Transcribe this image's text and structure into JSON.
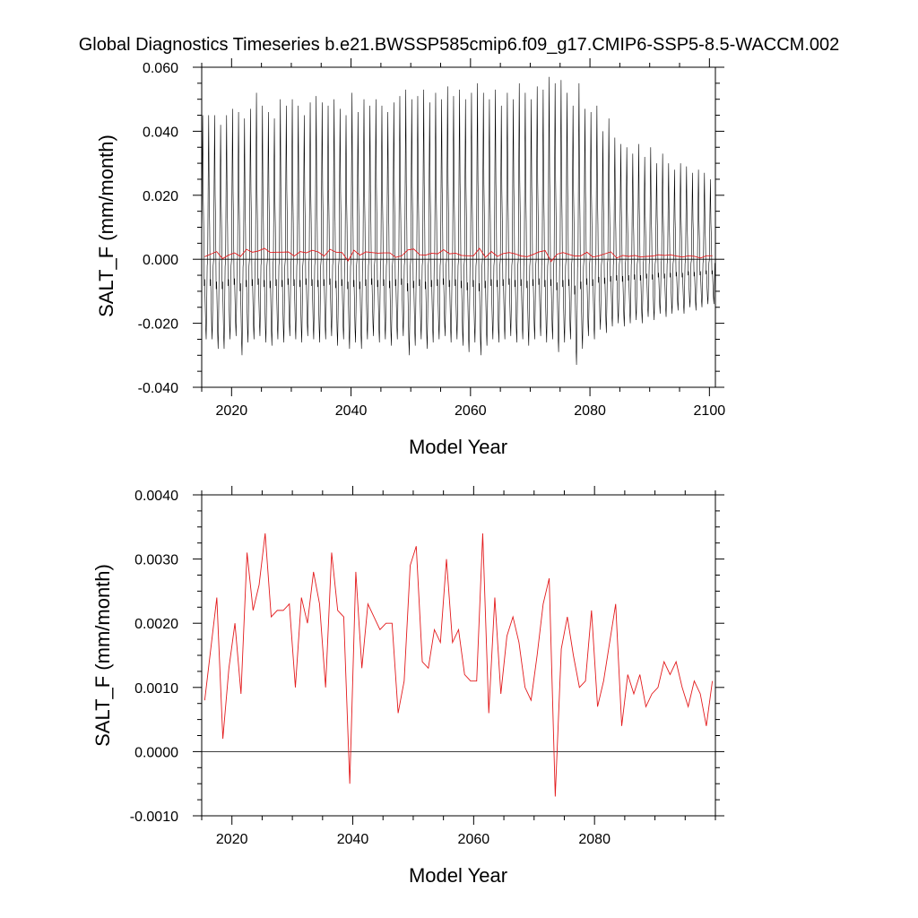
{
  "figure": {
    "title": "Global Diagnostics Timeseries b.e21.BWSSP585cmip6.f09_g17.CMIP6-SSP5-8.5-WACCM.002"
  },
  "colors": {
    "monthly_line": "#000000",
    "annual_line": "#e31a1c",
    "zero_line": "#000000",
    "frame": "#000000"
  },
  "chart_data": [
    {
      "type": "line",
      "title": "",
      "xlabel": "Model Year",
      "ylabel": "SALT_F (mm/month)",
      "xlim": [
        2015,
        2101
      ],
      "ylim": [
        -0.04,
        0.06
      ],
      "xticks": [
        2020,
        2040,
        2060,
        2080,
        2100
      ],
      "xtick_labels": [
        "2020",
        "2040",
        "2060",
        "2080",
        "2100"
      ],
      "yticks": [
        -0.04,
        -0.02,
        0.0,
        0.02,
        0.04,
        0.06
      ],
      "ytick_labels": [
        "-0.040",
        "-0.020",
        "0.000",
        "0.020",
        "0.040",
        "0.060"
      ],
      "reference_line": 0,
      "grid": false,
      "series": [
        {
          "kind": "monthly",
          "start_year": 2015,
          "month_cycle": [
            0.0,
            0.012,
            0.022,
            0.02,
            0.005,
            -0.008,
            -0.006,
            -0.012,
            -0.02,
            -0.024,
            -0.015,
            -0.002
          ],
          "annual_peak": [
            0.045,
            0.045,
            0.045,
            0.042,
            0.045,
            0.047,
            0.046,
            0.044,
            0.047,
            0.052,
            0.048,
            0.046,
            0.044,
            0.05,
            0.048,
            0.05,
            0.048,
            0.045,
            0.049,
            0.051,
            0.049,
            0.048,
            0.05,
            0.047,
            0.045,
            0.052,
            0.046,
            0.05,
            0.048,
            0.05,
            0.048,
            0.046,
            0.049,
            0.051,
            0.053,
            0.05,
            0.051,
            0.053,
            0.049,
            0.052,
            0.05,
            0.054,
            0.051,
            0.053,
            0.05,
            0.052,
            0.055,
            0.052,
            0.05,
            0.053,
            0.048,
            0.052,
            0.05,
            0.055,
            0.052,
            0.05,
            0.054,
            0.053,
            0.057,
            0.055,
            0.056,
            0.052,
            0.048,
            0.055,
            0.047,
            0.046,
            0.048,
            0.04,
            0.044,
            0.038,
            0.036,
            0.035,
            0.033,
            0.036,
            0.032,
            0.035,
            0.03,
            0.033,
            0.03,
            0.028,
            0.03,
            0.029,
            0.027,
            0.028,
            0.027,
            0.025
          ],
          "annual_trough": [
            -0.025,
            -0.025,
            -0.028,
            -0.028,
            -0.025,
            -0.024,
            -0.03,
            -0.026,
            -0.025,
            -0.024,
            -0.026,
            -0.027,
            -0.025,
            -0.026,
            -0.024,
            -0.025,
            -0.026,
            -0.024,
            -0.025,
            -0.026,
            -0.025,
            -0.024,
            -0.027,
            -0.025,
            -0.028,
            -0.026,
            -0.028,
            -0.025,
            -0.024,
            -0.026,
            -0.025,
            -0.027,
            -0.025,
            -0.024,
            -0.03,
            -0.027,
            -0.025,
            -0.028,
            -0.026,
            -0.025,
            -0.024,
            -0.026,
            -0.025,
            -0.027,
            -0.029,
            -0.026,
            -0.03,
            -0.027,
            -0.025,
            -0.026,
            -0.025,
            -0.024,
            -0.026,
            -0.025,
            -0.027,
            -0.025,
            -0.024,
            -0.026,
            -0.025,
            -0.029,
            -0.026,
            -0.025,
            -0.033,
            -0.028,
            -0.024,
            -0.025,
            -0.022,
            -0.023,
            -0.021,
            -0.02,
            -0.021,
            -0.02,
            -0.019,
            -0.02,
            -0.018,
            -0.019,
            -0.017,
            -0.018,
            -0.017,
            -0.016,
            -0.017,
            -0.015,
            -0.016,
            -0.015,
            -0.014,
            -0.014
          ]
        },
        {
          "kind": "annual",
          "x": [
            2015.5,
            2016.5,
            2017.5,
            2018.5,
            2019.5,
            2020.5,
            2021.5,
            2022.5,
            2023.5,
            2024.5,
            2025.5,
            2026.5,
            2027.5,
            2028.5,
            2029.5,
            2030.5,
            2031.5,
            2032.5,
            2033.5,
            2034.5,
            2035.5,
            2036.5,
            2037.5,
            2038.5,
            2039.5,
            2040.5,
            2041.5,
            2042.5,
            2043.5,
            2044.5,
            2045.5,
            2046.5,
            2047.5,
            2048.5,
            2049.5,
            2050.5,
            2051.5,
            2052.5,
            2053.5,
            2054.5,
            2055.5,
            2056.5,
            2057.5,
            2058.5,
            2059.5,
            2060.5,
            2061.5,
            2062.5,
            2063.5,
            2064.5,
            2065.5,
            2066.5,
            2067.5,
            2068.5,
            2069.5,
            2070.5,
            2071.5,
            2072.5,
            2073.5,
            2074.5,
            2075.5,
            2076.5,
            2077.5,
            2078.5,
            2079.5,
            2080.5,
            2081.5,
            2082.5,
            2083.5,
            2084.5,
            2085.5,
            2086.5,
            2087.5,
            2088.5,
            2089.5,
            2090.5,
            2091.5,
            2092.5,
            2093.5,
            2094.5,
            2095.5,
            2096.5,
            2097.5,
            2098.5,
            2099.5,
            2100.5
          ],
          "y": [
            0.0008,
            0.0016,
            0.0024,
            0.0002,
            0.0013,
            0.002,
            0.0009,
            0.0031,
            0.0022,
            0.0026,
            0.0034,
            0.0021,
            0.0022,
            0.0022,
            0.0023,
            0.001,
            0.0024,
            0.002,
            0.0028,
            0.0023,
            0.001,
            0.0031,
            0.0022,
            0.0021,
            -0.0005,
            0.0028,
            0.0013,
            0.0023,
            0.0021,
            0.0019,
            0.002,
            0.002,
            0.0006,
            0.0011,
            0.0029,
            0.0032,
            0.0014,
            0.0013,
            0.0019,
            0.0017,
            0.003,
            0.0017,
            0.0019,
            0.0012,
            0.0011,
            0.0011,
            0.0034,
            0.0006,
            0.0024,
            0.0009,
            0.0018,
            0.0021,
            0.0017,
            0.001,
            0.0008,
            0.0015,
            0.0023,
            0.0027,
            -0.0007,
            0.0016,
            0.0021,
            0.0015,
            0.001,
            0.0011,
            0.0022,
            0.0007,
            0.0011,
            0.0017,
            0.0023,
            0.0004,
            0.0012,
            0.0009,
            0.0012,
            0.0007,
            0.0009,
            0.001,
            0.0014,
            0.0012,
            0.0014,
            0.001,
            0.0007,
            0.0011,
            0.0009,
            0.0004,
            0.0011,
            0.0011
          ]
        }
      ]
    },
    {
      "type": "line",
      "title": "",
      "xlabel": "Model Year",
      "ylabel": "SALT_F (mm/month)",
      "xlim": [
        2015,
        2100
      ],
      "ylim": [
        -0.001,
        0.004
      ],
      "xticks": [
        2020,
        2040,
        2060,
        2080
      ],
      "xtick_labels": [
        "2020",
        "2040",
        "2060",
        "2080"
      ],
      "yticks": [
        -0.001,
        0.0,
        0.001,
        0.002,
        0.003,
        0.004
      ],
      "ytick_labels": [
        "-0.0010",
        "0.0000",
        "0.0010",
        "0.0020",
        "0.0030",
        "0.0040"
      ],
      "reference_line": 0,
      "grid": false,
      "series": [
        {
          "kind": "annual",
          "x": [
            2015.5,
            2016.5,
            2017.5,
            2018.5,
            2019.5,
            2020.5,
            2021.5,
            2022.5,
            2023.5,
            2024.5,
            2025.5,
            2026.5,
            2027.5,
            2028.5,
            2029.5,
            2030.5,
            2031.5,
            2032.5,
            2033.5,
            2034.5,
            2035.5,
            2036.5,
            2037.5,
            2038.5,
            2039.5,
            2040.5,
            2041.5,
            2042.5,
            2043.5,
            2044.5,
            2045.5,
            2046.5,
            2047.5,
            2048.5,
            2049.5,
            2050.5,
            2051.5,
            2052.5,
            2053.5,
            2054.5,
            2055.5,
            2056.5,
            2057.5,
            2058.5,
            2059.5,
            2060.5,
            2061.5,
            2062.5,
            2063.5,
            2064.5,
            2065.5,
            2066.5,
            2067.5,
            2068.5,
            2069.5,
            2070.5,
            2071.5,
            2072.5,
            2073.5,
            2074.5,
            2075.5,
            2076.5,
            2077.5,
            2078.5,
            2079.5,
            2080.5,
            2081.5,
            2082.5,
            2083.5,
            2084.5,
            2085.5,
            2086.5,
            2087.5,
            2088.5,
            2089.5,
            2090.5,
            2091.5,
            2092.5,
            2093.5,
            2094.5,
            2095.5,
            2096.5,
            2097.5,
            2098.5,
            2099.5
          ],
          "y": [
            0.0008,
            0.0016,
            0.0024,
            0.0002,
            0.0013,
            0.002,
            0.0009,
            0.0031,
            0.0022,
            0.0026,
            0.0034,
            0.0021,
            0.0022,
            0.0022,
            0.0023,
            0.001,
            0.0024,
            0.002,
            0.0028,
            0.0023,
            0.001,
            0.0031,
            0.0022,
            0.0021,
            -0.0005,
            0.0028,
            0.0013,
            0.0023,
            0.0021,
            0.0019,
            0.002,
            0.002,
            0.0006,
            0.0011,
            0.0029,
            0.0032,
            0.0014,
            0.0013,
            0.0019,
            0.0017,
            0.003,
            0.0017,
            0.0019,
            0.0012,
            0.0011,
            0.0011,
            0.0034,
            0.0006,
            0.0024,
            0.0009,
            0.0018,
            0.0021,
            0.0017,
            0.001,
            0.0008,
            0.0015,
            0.0023,
            0.0027,
            -0.0007,
            0.0016,
            0.0021,
            0.0015,
            0.001,
            0.0011,
            0.0022,
            0.0007,
            0.0011,
            0.0017,
            0.0023,
            0.0004,
            0.0012,
            0.0009,
            0.0012,
            0.0007,
            0.0009,
            0.001,
            0.0014,
            0.0012,
            0.0014,
            0.001,
            0.0007,
            0.0011,
            0.0009,
            0.0004,
            0.0011
          ]
        }
      ]
    }
  ]
}
